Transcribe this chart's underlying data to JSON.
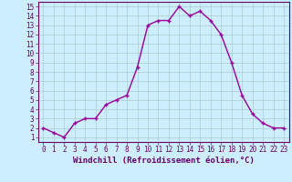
{
  "x": [
    0,
    1,
    2,
    3,
    4,
    5,
    6,
    7,
    8,
    9,
    10,
    11,
    12,
    13,
    14,
    15,
    16,
    17,
    18,
    19,
    20,
    21,
    22,
    23
  ],
  "y": [
    2,
    1.5,
    1,
    2.5,
    3,
    3,
    4.5,
    5,
    5.5,
    8.5,
    13,
    13.5,
    13.5,
    15,
    14,
    14.5,
    13.5,
    12,
    9,
    5.5,
    3.5,
    2.5,
    2,
    2
  ],
  "line_color": "#990099",
  "marker": "+",
  "bg_color": "#cceeff",
  "grid_color": "#aacccc",
  "xlabel": "Windchill (Refroidissement éolien,°C)",
  "axis_label_color": "#660066",
  "tick_color": "#660066",
  "xlabel_fontsize": 6.5,
  "tick_fontsize": 5.5,
  "linewidth": 1.0,
  "markersize": 3,
  "xlim": [
    -0.5,
    23.5
  ],
  "ylim": [
    0.5,
    15.5
  ],
  "yticks": [
    1,
    2,
    3,
    4,
    5,
    6,
    7,
    8,
    9,
    10,
    11,
    12,
    13,
    14,
    15
  ],
  "xticks": [
    0,
    1,
    2,
    3,
    4,
    5,
    6,
    7,
    8,
    9,
    10,
    11,
    12,
    13,
    14,
    15,
    16,
    17,
    18,
    19,
    20,
    21,
    22,
    23
  ]
}
